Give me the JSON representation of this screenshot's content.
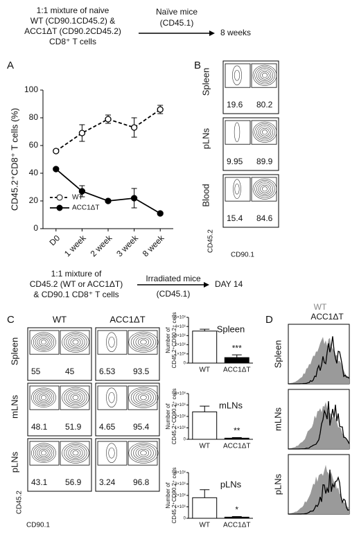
{
  "scheme_top": {
    "lines": [
      "1:1 mixture of naive",
      "WT (CD90.1CD45.2) &",
      "ACC1ΔT (CD90.2CD45.2)",
      "CD8⁺ T cells"
    ],
    "arrow_above": [
      "Naïve mice",
      "(CD45.1)"
    ],
    "result": "8 weeks"
  },
  "scheme_bottom": {
    "lines": [
      "1:1 mixture of",
      "CD45.2 (WT or ACC1ΔT)",
      "& CD90.1 CD8⁺ T cells"
    ],
    "arrow_above": "Irradiated mice",
    "arrow_below": "(CD45.1)",
    "result": "DAY 14"
  },
  "panel_labels": [
    "A",
    "B",
    "C",
    "D"
  ],
  "chart_data": [
    {
      "type": "line",
      "ylabel": "CD45.2⁺CD8⁺ T cells (%)",
      "categories": [
        "D0",
        "1 week",
        "2 week",
        "3 week",
        "8 week"
      ],
      "ylim": [
        0,
        100
      ],
      "yticks": [
        0,
        20,
        40,
        60,
        80,
        100
      ],
      "series": [
        {
          "name": "WT",
          "color": "#000000",
          "marker": "open",
          "dashed": true,
          "values": [
            56,
            69,
            79,
            73,
            86
          ],
          "errors": [
            1,
            6,
            3,
            7,
            3
          ]
        },
        {
          "name": "ACC1ΔT",
          "color": "#000000",
          "marker": "filled",
          "dashed": false,
          "values": [
            43,
            27,
            20,
            22,
            11
          ],
          "errors": [
            1,
            4,
            1,
            7,
            1
          ]
        }
      ]
    },
    {
      "type": "bar",
      "title": "Spleen",
      "ylabel": [
        "Number of",
        "CD45.2⁺CD90.2⁺ cells"
      ],
      "categories": [
        "WT",
        "ACC1ΔT"
      ],
      "values": [
        3.5,
        0.6
      ],
      "errors": [
        0.2,
        0.3
      ],
      "colors": [
        "#ffffff",
        "#000000"
      ],
      "annotation": "***",
      "ylim": [
        0,
        5
      ],
      "yticks": [
        0,
        {
          "value": 1,
          "label": "1×10⁶"
        },
        {
          "value": 2,
          "label": "2×10⁶"
        },
        {
          "value": 3,
          "label": "3×10⁶"
        },
        {
          "value": 4,
          "label": "4×10⁶"
        },
        {
          "value": 5,
          "label": "5×10⁶"
        }
      ]
    },
    {
      "type": "bar",
      "title": "mLNs",
      "ylabel": [
        "Number of",
        "CD45.2⁺CD90.2⁺ cells"
      ],
      "categories": [
        "WT",
        "ACC1ΔT"
      ],
      "values": [
        2.4,
        0.1
      ],
      "errors": [
        0.5,
        0.05
      ],
      "colors": [
        "#ffffff",
        "#000000"
      ],
      "annotation": "**",
      "ylim": [
        0,
        4
      ],
      "yticks": [
        0,
        {
          "value": 1,
          "label": "1×10⁶"
        },
        {
          "value": 2,
          "label": "2×10⁶"
        },
        {
          "value": 3,
          "label": "3×10⁶"
        },
        {
          "value": 4,
          "label": "4×10⁶"
        }
      ]
    },
    {
      "type": "bar",
      "title": "pLNs",
      "ylabel": [
        "Number of",
        "CD45.2⁺CD90.2⁺ cells"
      ],
      "categories": [
        "WT",
        "ACC1ΔT"
      ],
      "values": [
        1.8,
        0.1
      ],
      "errors": [
        0.7,
        0.05
      ],
      "colors": [
        "#ffffff",
        "#000000"
      ],
      "annotation": "*",
      "ylim": [
        0,
        4
      ],
      "yticks": [
        0,
        {
          "value": 1,
          "label": "1×10⁶"
        },
        {
          "value": 2,
          "label": "2×10⁶"
        },
        {
          "value": 3,
          "label": "3×10⁶"
        },
        {
          "value": 4,
          "label": "4×10⁶"
        }
      ]
    }
  ],
  "panel_B": {
    "plots": [
      {
        "tissue": "Spleen",
        "left": 19.6,
        "right": 80.2
      },
      {
        "tissue": "pLNs",
        "left": 9.95,
        "right": 89.9
      },
      {
        "tissue": "Blood",
        "left": 15.4,
        "right": 84.6
      }
    ],
    "y_axis": "CD45.2",
    "x_axis": "CD90.1"
  },
  "panel_C": {
    "columns": [
      "WT",
      "ACC1ΔT"
    ],
    "rows": [
      {
        "tissue": "Spleen",
        "wt": [
          55,
          45
        ],
        "acc": [
          6.53,
          93.5
        ]
      },
      {
        "tissue": "mLNs",
        "wt": [
          48.1,
          51.9
        ],
        "acc": [
          4.65,
          95.4
        ]
      },
      {
        "tissue": "pLNs",
        "wt": [
          43.1,
          56.9
        ],
        "acc": [
          3.24,
          96.8
        ]
      }
    ],
    "y_axis": "CD45.2",
    "x_axis": "CD90.1"
  },
  "panel_D": {
    "legend": [
      "WT",
      "ACC1ΔT"
    ],
    "tissues": [
      "Spleen",
      "mLNs",
      "pLNs"
    ]
  }
}
